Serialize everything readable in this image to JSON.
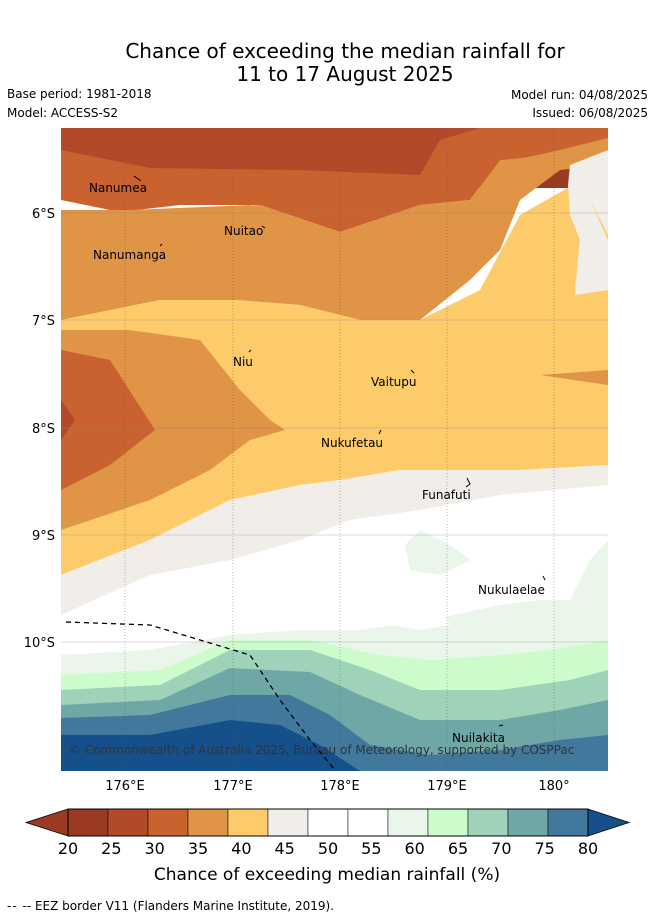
{
  "header": {
    "title_line1": "Chance of exceeding the median rainfall for",
    "title_line2": "11 to 17 August 2025",
    "base_period": "Base period: 1981-2018",
    "model": "Model: ACCESS-S2",
    "model_run": "Model run: 04/08/2025",
    "issued": "Issued: 06/08/2025"
  },
  "map": {
    "lon_ticks": [
      "176°E",
      "177°E",
      "178°E",
      "179°E",
      "180°"
    ],
    "lat_ticks": [
      "6°S",
      "7°S",
      "8°S",
      "9°S",
      "10°S"
    ],
    "islands": [
      {
        "name": "Nanumea"
      },
      {
        "name": "Nuitao"
      },
      {
        "name": "Nanumanga"
      },
      {
        "name": "Niu"
      },
      {
        "name": "Vaitupu"
      },
      {
        "name": "Nukufetau"
      },
      {
        "name": "Funafuti"
      },
      {
        "name": "Nukulaelae"
      },
      {
        "name": "Nuilakita"
      }
    ],
    "copyright": "© Commonwealth of Australia 2025, Bureau of Meteorology, supported by COSPPac"
  },
  "colorbar": {
    "ticks": [
      "20",
      "25",
      "30",
      "35",
      "40",
      "45",
      "50",
      "55",
      "60",
      "65",
      "70",
      "75",
      "80"
    ],
    "colors": [
      "#9a3a22",
      "#b24a2a",
      "#c9622f",
      "#e09445",
      "#fdcb6a",
      "#f1ede8",
      "#ffffff",
      "#ffffff",
      "#eaf6e9",
      "#ccfccc",
      "#9ed2b9",
      "#6fa7a7",
      "#41789b"
    ],
    "under_color": "#9a3a22",
    "over_color": "#15508b",
    "label": "Chance of exceeding median rainfall (%)"
  },
  "footer": {
    "legend_text": "-- EEZ border V11 (Flanders Marine Institute, 2019)."
  }
}
